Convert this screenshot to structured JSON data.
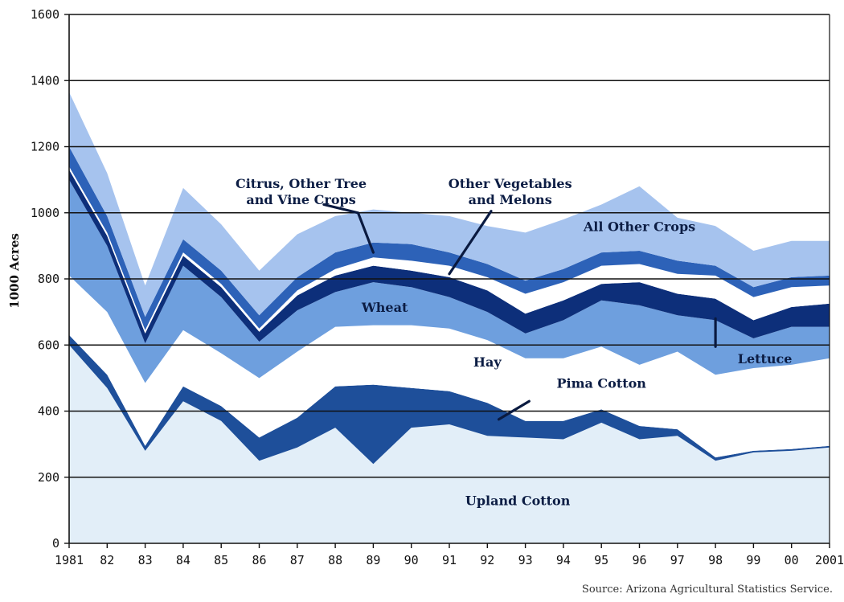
{
  "chart_data": {
    "type": "area",
    "stacked": true,
    "title": "",
    "xlabel": "",
    "ylabel": "1000 Acres",
    "ylim": [
      0,
      1600
    ],
    "yticks": [
      0,
      200,
      400,
      600,
      800,
      1000,
      1200,
      1400,
      1600
    ],
    "grid": "horizontal",
    "x": [
      1981,
      1982,
      1983,
      1984,
      1985,
      1986,
      1987,
      1988,
      1989,
      1990,
      1991,
      1992,
      1993,
      1994,
      1995,
      1996,
      1997,
      1998,
      1999,
      2000,
      2001
    ],
    "x_tick_labels": [
      "1981",
      "82",
      "83",
      "84",
      "85",
      "86",
      "87",
      "88",
      "89",
      "90",
      "91",
      "92",
      "93",
      "94",
      "95",
      "96",
      "97",
      "98",
      "99",
      "00",
      "2001"
    ],
    "series": [
      {
        "name": "Upland Cotton",
        "color": "#e2eef8",
        "values": [
          600,
          470,
          280,
          430,
          370,
          250,
          290,
          350,
          240,
          350,
          360,
          325,
          320,
          315,
          365,
          315,
          325,
          250,
          275,
          280,
          290
        ]
      },
      {
        "name": "Pima Cotton",
        "color": "#1e4f9a",
        "values": [
          30,
          40,
          15,
          45,
          45,
          70,
          90,
          125,
          240,
          120,
          100,
          100,
          50,
          55,
          40,
          40,
          20,
          10,
          5,
          5,
          5
        ]
      },
      {
        "name": "Hay",
        "color": "#ffffff",
        "values": [
          180,
          190,
          190,
          170,
          160,
          180,
          200,
          180,
          180,
          190,
          190,
          190,
          190,
          190,
          190,
          185,
          235,
          250,
          250,
          255,
          265
        ]
      },
      {
        "name": "Wheat",
        "color": "#6e9fde",
        "values": [
          290,
          200,
          120,
          195,
          170,
          110,
          125,
          105,
          130,
          115,
          95,
          85,
          75,
          115,
          140,
          180,
          110,
          165,
          90,
          115,
          95
        ]
      },
      {
        "name": "Lettuce",
        "color": "#0d2f7a",
        "values": [
          30,
          30,
          30,
          30,
          30,
          30,
          45,
          50,
          50,
          50,
          60,
          65,
          60,
          60,
          50,
          70,
          65,
          65,
          55,
          60,
          70
        ]
      },
      {
        "name": "Other Vegetables and Melons",
        "color": "#ffffff",
        "values": [
          10,
          10,
          10,
          10,
          10,
          10,
          15,
          20,
          25,
          30,
          35,
          40,
          60,
          55,
          55,
          55,
          60,
          70,
          70,
          60,
          55
        ]
      },
      {
        "name": "Citrus, Other Tree and Vine Crops",
        "color": "#2d62b8",
        "values": [
          60,
          50,
          40,
          40,
          40,
          40,
          40,
          50,
          45,
          50,
          40,
          40,
          40,
          40,
          40,
          40,
          40,
          30,
          30,
          30,
          30
        ]
      },
      {
        "name": "All Other Crops",
        "color": "#a6c3ee",
        "values": [
          165,
          130,
          95,
          155,
          140,
          135,
          130,
          110,
          100,
          95,
          110,
          115,
          145,
          150,
          145,
          195,
          130,
          120,
          110,
          110,
          105
        ]
      }
    ],
    "annotations": [
      {
        "text": "Citrus, Other Tree and Vine Crops",
        "lines": [
          "Citrus, Other Tree",
          "and Vine Crops"
        ]
      },
      {
        "text": "Other Vegetables and Melons",
        "lines": [
          "Other Vegetables",
          "and Melons"
        ]
      },
      {
        "text": "All Other Crops",
        "lines": [
          "All Other Crops"
        ]
      },
      {
        "text": "Wheat",
        "lines": [
          "Wheat"
        ]
      },
      {
        "text": "Hay",
        "lines": [
          "Hay"
        ]
      },
      {
        "text": "Lettuce",
        "lines": [
          "Lettuce"
        ]
      },
      {
        "text": "Pima Cotton",
        "lines": [
          "Pima Cotton"
        ]
      },
      {
        "text": "Upland Cotton",
        "lines": [
          "Upland Cotton"
        ]
      }
    ]
  },
  "source": "Source: Arizona Agricultural Statistics Service."
}
